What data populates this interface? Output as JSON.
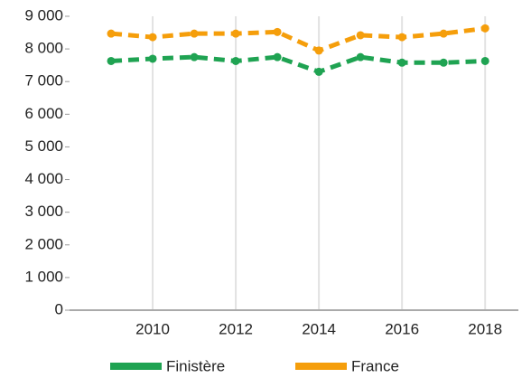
{
  "chart_data": {
    "type": "line",
    "x": [
      2009,
      2010,
      2011,
      2012,
      2013,
      2014,
      2015,
      2016,
      2017,
      2018
    ],
    "series": [
      {
        "name": "Finistère",
        "color": "#1fa352",
        "values": [
          7630,
          7700,
          7750,
          7630,
          7750,
          7300,
          7750,
          7580,
          7580,
          7630
        ]
      },
      {
        "name": "France",
        "color": "#f59e0b",
        "values": [
          8470,
          8360,
          8470,
          8470,
          8520,
          7950,
          8420,
          8360,
          8470,
          8630
        ]
      }
    ],
    "xlim": [
      2008,
      2018.8
    ],
    "xticks": [
      2010,
      2012,
      2014,
      2016,
      2018
    ],
    "ylim": [
      0,
      9000
    ],
    "yticks": [
      0,
      {
        "value": 1000,
        "label": "1 000"
      },
      {
        "value": 2000,
        "label": "2 000"
      },
      {
        "value": 3000,
        "label": "3 000"
      },
      {
        "value": 4000,
        "label": "4 000"
      },
      {
        "value": 5000,
        "label": "5 000"
      },
      {
        "value": 6000,
        "label": "6 000"
      },
      {
        "value": 7000,
        "label": "7 000"
      },
      {
        "value": 8000,
        "label": "8 000"
      },
      {
        "value": 9000,
        "label": "9 000"
      }
    ],
    "grid": true,
    "legend": "bottom"
  }
}
